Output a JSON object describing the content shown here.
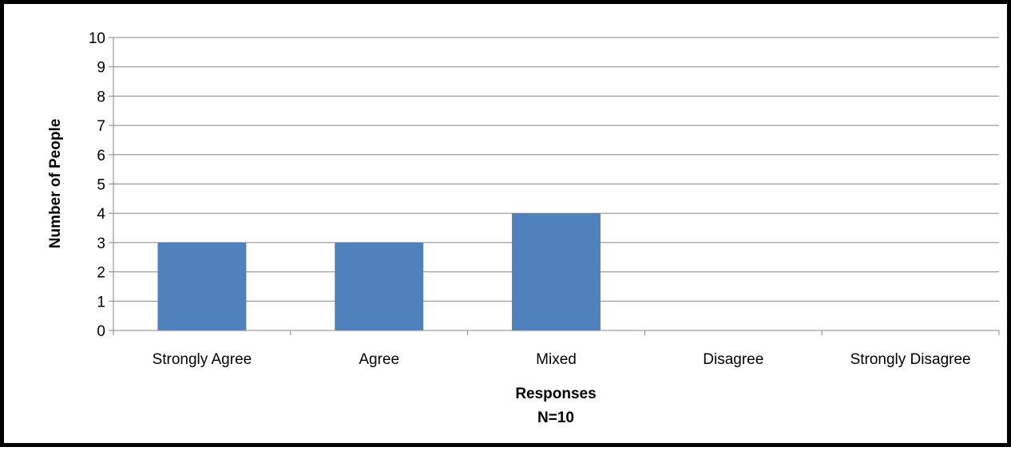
{
  "chart_data": {
    "type": "bar",
    "categories": [
      "Strongly Agree",
      "Agree",
      "Mixed",
      "Disagree",
      "Strongly Disagree"
    ],
    "values": [
      3,
      3,
      4,
      0,
      0
    ],
    "xlabel": "Responses",
    "xlabel_note": "N=10",
    "ylabel": "Number of People",
    "ylim": [
      0,
      10
    ],
    "yticks": [
      0,
      1,
      2,
      3,
      4,
      5,
      6,
      7,
      8,
      9,
      10
    ],
    "grid": true,
    "legend": "none",
    "bar_color": "#4f81bd",
    "grid_color": "#868686"
  }
}
